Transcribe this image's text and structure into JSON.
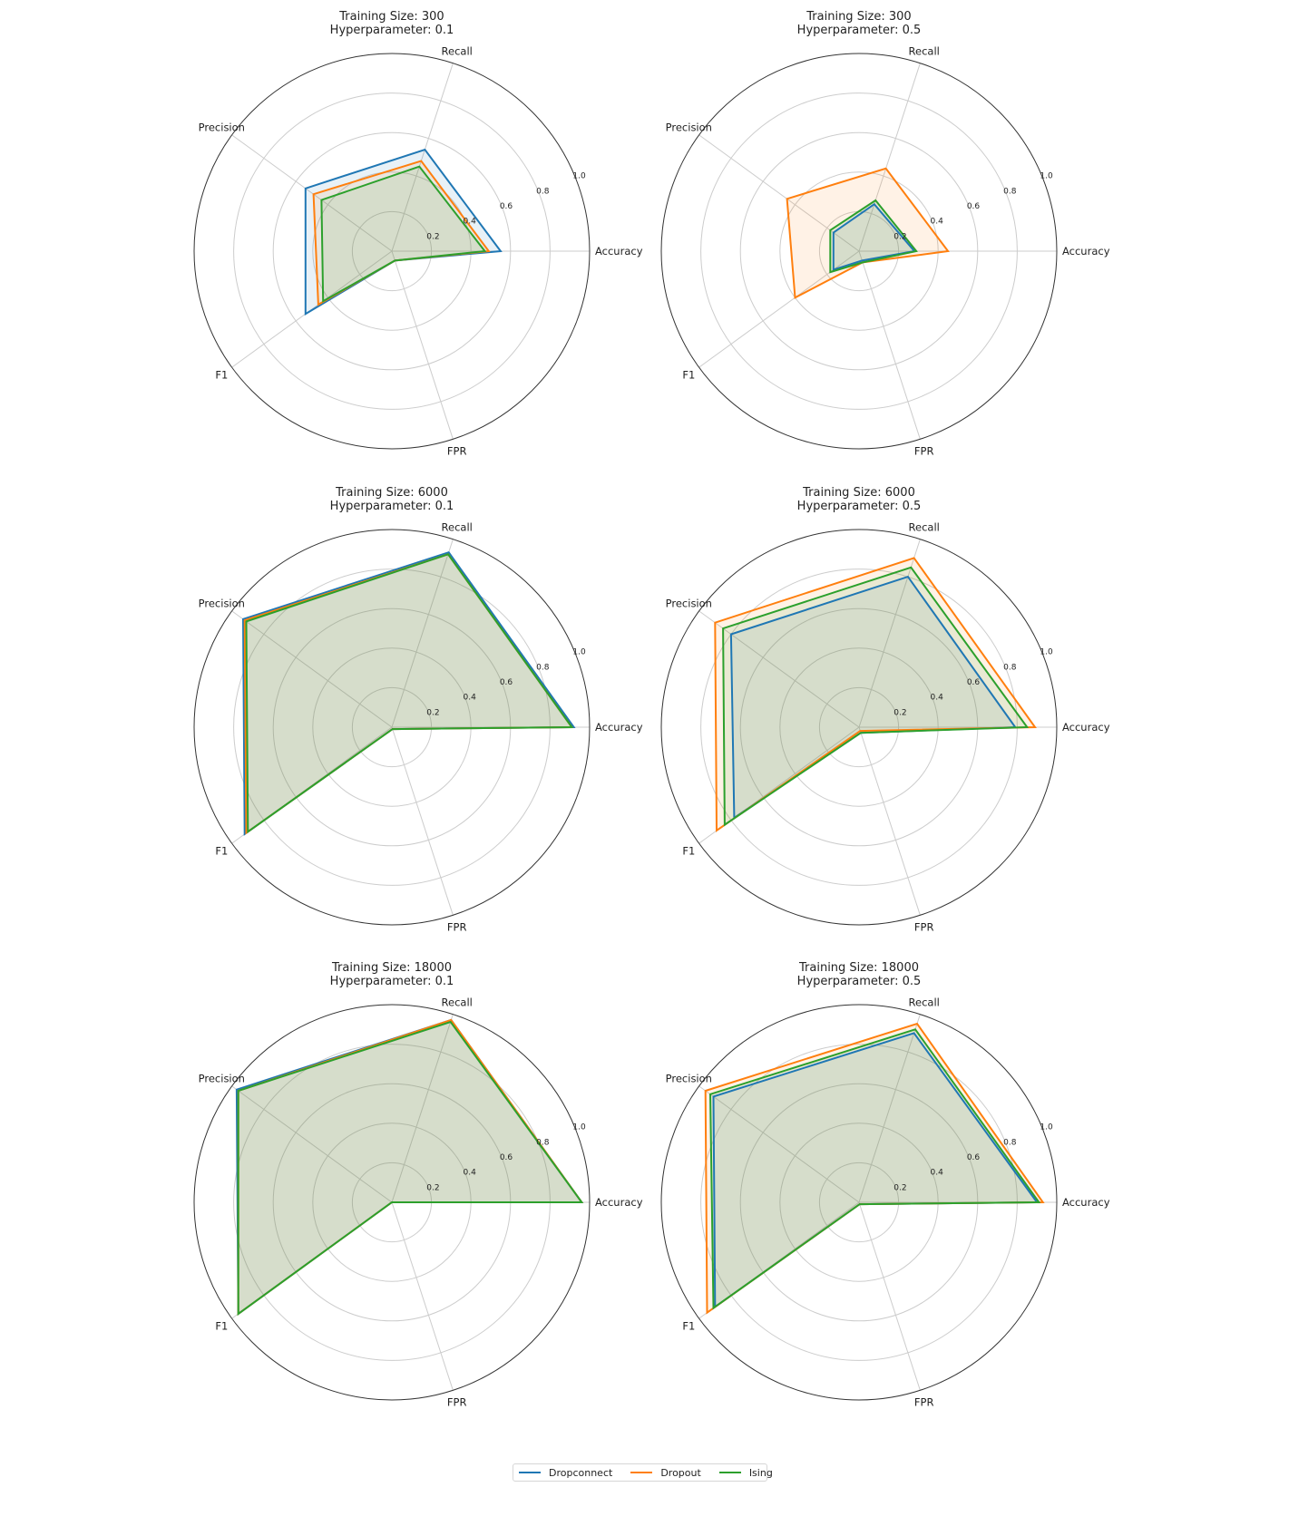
{
  "legend": {
    "items": [
      {
        "label": "Dropconnect",
        "color": "#1f77b4"
      },
      {
        "label": "Dropout",
        "color": "#ff7f0e"
      },
      {
        "label": "Ising",
        "color": "#2ca02c"
      }
    ]
  },
  "chart_data": {
    "type": "radar",
    "axes": [
      "Accuracy",
      "Recall",
      "Precision",
      "F1",
      "FPR"
    ],
    "rticks": [
      "0.2",
      "0.4",
      "0.6",
      "0.8",
      "1.0"
    ],
    "rlim": [
      0,
      1
    ],
    "grid": true,
    "legend_position": "bottom-center",
    "series_names": [
      "Dropconnect",
      "Dropout",
      "Ising"
    ],
    "series_colors": [
      "#1f77b4",
      "#ff7f0e",
      "#2ca02c"
    ],
    "panels": [
      {
        "title_line1": "Training Size: 300",
        "title_line2": "Hyperparameter: 0.1",
        "series": [
          {
            "name": "Dropconnect",
            "values": [
              0.55,
              0.54,
              0.54,
              0.54,
              0.05
            ]
          },
          {
            "name": "Dropout",
            "values": [
              0.49,
              0.48,
              0.49,
              0.46,
              0.05
            ]
          },
          {
            "name": "Ising",
            "values": [
              0.47,
              0.45,
              0.44,
              0.43,
              0.05
            ]
          }
        ]
      },
      {
        "title_line1": "Training Size: 300",
        "title_line2": "Hyperparameter: 0.5",
        "series": [
          {
            "name": "Dropconnect",
            "values": [
              0.28,
              0.25,
              0.16,
              0.16,
              0.05
            ]
          },
          {
            "name": "Dropout",
            "values": [
              0.45,
              0.44,
              0.45,
              0.4,
              0.06
            ]
          },
          {
            "name": "Ising",
            "values": [
              0.29,
              0.27,
              0.18,
              0.18,
              0.06
            ]
          }
        ]
      },
      {
        "title_line1": "Training Size: 6000",
        "title_line2": "Hyperparameter: 0.1",
        "series": [
          {
            "name": "Dropconnect",
            "values": [
              0.92,
              0.93,
              0.93,
              0.92,
              0.01
            ]
          },
          {
            "name": "Dropout",
            "values": [
              0.91,
              0.92,
              0.92,
              0.91,
              0.01
            ]
          },
          {
            "name": "Ising",
            "values": [
              0.91,
              0.92,
              0.91,
              0.9,
              0.01
            ]
          }
        ]
      },
      {
        "title_line1": "Training Size: 6000",
        "title_line2": "Hyperparameter: 0.5",
        "series": [
          {
            "name": "Dropconnect",
            "values": [
              0.79,
              0.8,
              0.8,
              0.78,
              0.03
            ]
          },
          {
            "name": "Dropout",
            "values": [
              0.89,
              0.9,
              0.9,
              0.89,
              0.02
            ]
          },
          {
            "name": "Ising",
            "values": [
              0.85,
              0.85,
              0.85,
              0.84,
              0.03
            ]
          }
        ]
      },
      {
        "title_line1": "Training Size: 18000",
        "title_line2": "Hyperparameter: 0.1",
        "series": [
          {
            "name": "Dropconnect",
            "values": [
              0.96,
              0.97,
              0.97,
              0.96,
              0.0
            ]
          },
          {
            "name": "Dropout",
            "values": [
              0.96,
              0.97,
              0.96,
              0.96,
              0.0
            ]
          },
          {
            "name": "Ising",
            "values": [
              0.96,
              0.96,
              0.96,
              0.96,
              0.0
            ]
          }
        ]
      },
      {
        "title_line1": "Training Size: 18000",
        "title_line2": "Hyperparameter: 0.5",
        "series": [
          {
            "name": "Dropconnect",
            "values": [
              0.9,
              0.9,
              0.91,
              0.9,
              0.01
            ]
          },
          {
            "name": "Dropout",
            "values": [
              0.93,
              0.95,
              0.96,
              0.95,
              0.01
            ]
          },
          {
            "name": "Ising",
            "values": [
              0.91,
              0.92,
              0.93,
              0.91,
              0.01
            ]
          }
        ]
      }
    ]
  }
}
